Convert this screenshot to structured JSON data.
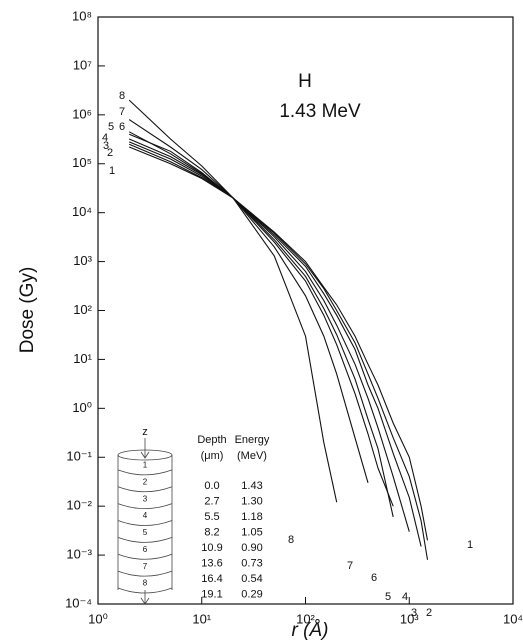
{
  "chart_data": {
    "type": "line",
    "title": "H",
    "subtitle": "1.43 MeV",
    "x_label": "r (Å)",
    "y_label": "Dose (Gy)",
    "log_x": true,
    "log_y": true,
    "color": "#111111",
    "xlim": [
      1,
      10000
    ],
    "ylim": [
      0.0001,
      100000000
    ],
    "xticks": [
      {
        "value": 1,
        "label": "10⁰"
      },
      {
        "value": 10,
        "label": "10¹"
      },
      {
        "value": 100,
        "label": "10²"
      },
      {
        "value": 1000,
        "label": "10³"
      },
      {
        "value": 10000,
        "label": "10⁴"
      }
    ],
    "yticks": [
      {
        "value": 0.0001,
        "label": "10⁻⁴"
      },
      {
        "value": 0.001,
        "label": "10⁻³"
      },
      {
        "value": 0.01,
        "label": "10⁻²"
      },
      {
        "value": 0.1,
        "label": "10⁻¹"
      },
      {
        "value": 1,
        "label": "10⁰"
      },
      {
        "value": 10,
        "label": "10¹"
      },
      {
        "value": 100,
        "label": "10²"
      },
      {
        "value": 1000,
        "label": "10³"
      },
      {
        "value": 10000,
        "label": "10⁴"
      },
      {
        "value": 100000,
        "label": "10⁵"
      },
      {
        "value": 1000000,
        "label": "10⁶"
      },
      {
        "value": 10000000,
        "label": "10⁷"
      },
      {
        "value": 100000000,
        "label": "10⁸"
      }
    ],
    "x": [
      2,
      5,
      10,
      20,
      50,
      100,
      150,
      200,
      300,
      400,
      500,
      700,
      1000,
      1300,
      1500
    ],
    "series": [
      {
        "name": "1",
        "values": [
          220000,
          100000,
          50000,
          20000,
          4000,
          1000,
          300,
          130,
          30,
          8,
          3,
          0.5,
          0.1,
          0.01,
          0.002
        ]
      },
      {
        "name": "2",
        "values": [
          250000,
          110000,
          52000,
          20000,
          3800,
          900,
          280,
          100,
          22,
          5,
          1.6,
          0.25,
          0.04,
          0.005,
          0.0008
        ]
      },
      {
        "name": "3",
        "values": [
          280000,
          125000,
          56000,
          20000,
          3500,
          800,
          220,
          80,
          16,
          3,
          1,
          0.12,
          0.015,
          0.0015,
          null
        ]
      },
      {
        "name": "4",
        "values": [
          320000,
          140000,
          60000,
          20000,
          3200,
          630,
          160,
          50,
          8,
          1.6,
          0.4,
          0.04,
          0.003,
          null,
          null
        ]
      },
      {
        "name": "5",
        "values": [
          450000,
          160000,
          63000,
          20000,
          2800,
          500,
          110,
          32,
          4,
          0.6,
          0.15,
          0.006,
          null,
          null,
          null
        ]
      },
      {
        "name": "6",
        "values": [
          400000,
          180000,
          66000,
          20000,
          2500,
          400,
          80,
          20,
          2,
          0.3,
          0.06,
          0.01,
          null,
          null,
          null
        ]
      },
      {
        "name": "7",
        "values": [
          800000,
          220000,
          76000,
          20000,
          2000,
          200,
          30,
          5,
          0.25,
          0.03,
          null,
          null,
          null,
          null,
          null
        ]
      },
      {
        "name": "8",
        "values": [
          2000000,
          320000,
          90000,
          20000,
          1300,
          30,
          0.2,
          0.012,
          null,
          null,
          null,
          null,
          null,
          null,
          null
        ]
      }
    ],
    "inset": {
      "axis_label": "z",
      "slices": [
        "1",
        "2",
        "3",
        "4",
        "5",
        "6",
        "7",
        "8"
      ],
      "columns": [
        {
          "header": "Depth",
          "unit": "(μm)",
          "values": [
            "0.0",
            "2.7",
            "5.5",
            "8.2",
            "10.9",
            "13.6",
            "16.4",
            "19.1"
          ]
        },
        {
          "header": "Energy",
          "unit": "(MeV)",
          "values": [
            "1.43",
            "1.30",
            "1.18",
            "1.05",
            "0.90",
            "0.73",
            "0.54",
            "0.29"
          ]
        }
      ]
    }
  }
}
